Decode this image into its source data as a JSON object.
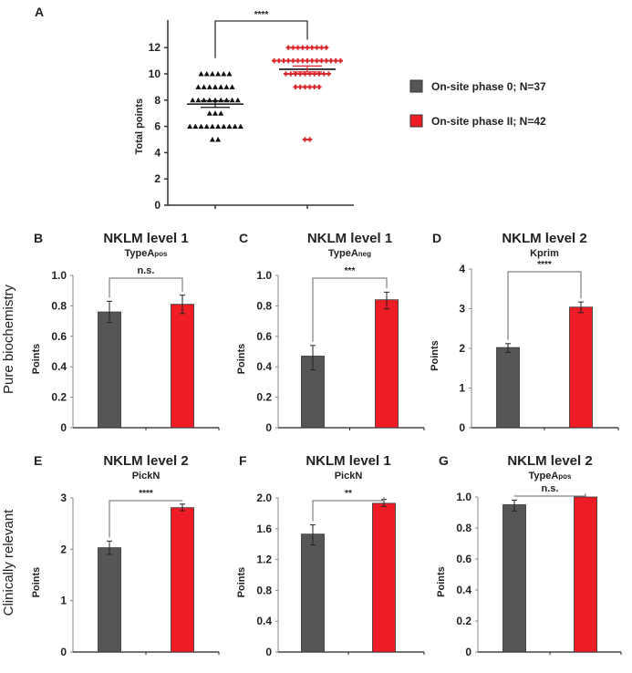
{
  "colors": {
    "phase0": "#565656",
    "phase2": "#ee1c25",
    "axis": "#333333",
    "marker0": "#111111",
    "marker2": "#d9262b"
  },
  "legend": [
    {
      "label": "On-site phase 0;  N=37",
      "color": "#565656"
    },
    {
      "label": "On-site phase II;  N=42",
      "color": "#ee1c25"
    }
  ],
  "row_labels": {
    "row1": "Pure biochemistry",
    "row2": "Clinically relevant"
  },
  "chart_data": [
    {
      "id": "A",
      "type": "scatter",
      "letter": "A",
      "title": "",
      "ylabel": "Total points",
      "ylim": [
        0,
        14
      ],
      "yticks": [
        0,
        2,
        4,
        6,
        8,
        10,
        12
      ],
      "significance": "****",
      "series": [
        {
          "name": "On-site phase 0",
          "marker": "triangle",
          "counts": {
            "10": 6,
            "9": 7,
            "8": 9,
            "7": 3,
            "6": 10,
            "5": 2
          },
          "mean": 7.7,
          "sem": [
            7.45,
            7.95
          ]
        },
        {
          "name": "On-site phase II",
          "marker": "plus",
          "counts": {
            "12": 9,
            "11": 15,
            "10": 10,
            "9": 6,
            "5": 2
          },
          "mean": 10.35,
          "sem": [
            10.15,
            10.6
          ]
        }
      ]
    },
    {
      "id": "B",
      "type": "bar",
      "letter": "B",
      "title": "NKLM level 1",
      "subtitle_main": "TypeA",
      "subtitle_sub": "pos",
      "ylabel": "Points",
      "ylim": [
        0,
        1.0
      ],
      "yticks": [
        "0",
        "0.2",
        "0.4",
        "0.6",
        "0.8",
        "1.0"
      ],
      "significance": "n.s.",
      "categories": [
        "On-site phase 0",
        "On-site phase II"
      ],
      "values": [
        0.76,
        0.81
      ],
      "errors": [
        [
          0.69,
          0.83
        ],
        [
          0.75,
          0.87
        ]
      ]
    },
    {
      "id": "C",
      "type": "bar",
      "letter": "C",
      "title": "NKLM level 1",
      "subtitle_main": "TypeA",
      "subtitle_sub": "neg",
      "ylabel": "Points",
      "ylim": [
        0,
        1.0
      ],
      "yticks": [
        "0",
        "0.2",
        "0.4",
        "0.6",
        "0.8",
        "1.0"
      ],
      "significance": "***",
      "categories": [
        "On-site phase 0",
        "On-site phase II"
      ],
      "values": [
        0.47,
        0.84
      ],
      "errors": [
        [
          0.38,
          0.54
        ],
        [
          0.78,
          0.89
        ]
      ]
    },
    {
      "id": "D",
      "type": "bar",
      "letter": "D",
      "title": "NKLM level 2",
      "subtitle_main": "Kprim",
      "subtitle_sub": "",
      "ylabel": "Points",
      "ylim": [
        0,
        4
      ],
      "yticks": [
        "0",
        "1",
        "2",
        "3",
        "4"
      ],
      "significance": "****",
      "categories": [
        "On-site phase 0",
        "On-site phase II"
      ],
      "values": [
        2.02,
        3.04
      ],
      "errors": [
        [
          1.9,
          2.12
        ],
        [
          2.9,
          3.17
        ]
      ]
    },
    {
      "id": "E",
      "type": "bar",
      "letter": "E",
      "title": "NKLM level 2",
      "subtitle_main": "PickN",
      "subtitle_sub": "",
      "ylabel": "Points",
      "ylim": [
        0,
        3
      ],
      "yticks": [
        "0",
        "1",
        "2",
        "3"
      ],
      "significance": "****",
      "categories": [
        "On-site phase 0",
        "On-site phase II"
      ],
      "values": [
        2.03,
        2.81
      ],
      "errors": [
        [
          1.9,
          2.16
        ],
        [
          2.75,
          2.88
        ]
      ]
    },
    {
      "id": "F",
      "type": "bar",
      "letter": "F",
      "title": "NKLM level 1",
      "subtitle_main": "PickN",
      "subtitle_sub": "",
      "ylabel": "Points",
      "ylim": [
        0,
        2.0
      ],
      "yticks": [
        "0",
        "0.4",
        "0.8",
        "1.2",
        "1.6",
        "2.0"
      ],
      "significance": "**",
      "categories": [
        "On-site phase 0",
        "On-site phase II"
      ],
      "values": [
        1.53,
        1.93
      ],
      "errors": [
        [
          1.39,
          1.65
        ],
        [
          1.89,
          1.98
        ]
      ]
    },
    {
      "id": "G",
      "type": "bar",
      "letter": "G",
      "title": "NKLM level 2",
      "subtitle_main": "TypeA",
      "subtitle_sub": "pos",
      "ylabel": "Points",
      "ylim": [
        0,
        1.0
      ],
      "yticks": [
        "0",
        "0.2",
        "0.4",
        "0.6",
        "0.8",
        "1.0"
      ],
      "significance": "n.s.",
      "categories": [
        "On-site phase 0",
        "On-site phase II"
      ],
      "values": [
        0.95,
        1.0
      ],
      "errors": [
        [
          0.91,
          0.98
        ],
        [
          1.0,
          1.0
        ]
      ]
    }
  ]
}
